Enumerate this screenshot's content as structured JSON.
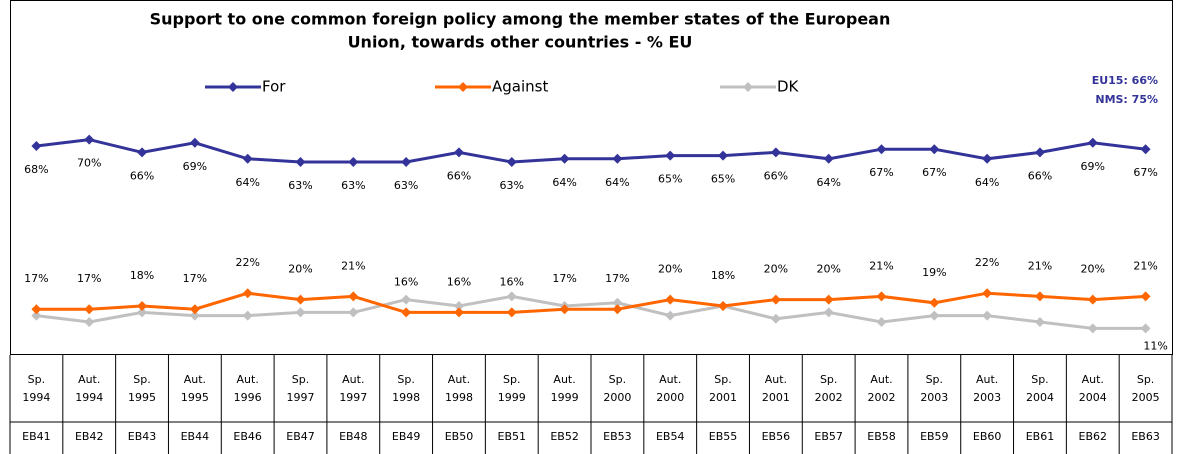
{
  "chart_data": {
    "type": "line",
    "title": [
      "Support to one common foreign policy among the member states of the European",
      "Union, towards other countries - % EU"
    ],
    "annotations": [
      "EU15: 66%",
      "NMS: 75%"
    ],
    "seasons": [
      "Sp.",
      "Aut.",
      "Sp.",
      "Aut.",
      "Aut.",
      "Sp.",
      "Aut.",
      "Sp.",
      "Aut.",
      "Sp.",
      "Aut.",
      "Sp.",
      "Aut.",
      "Sp.",
      "Aut.",
      "Sp.",
      "Aut.",
      "Sp.",
      "Aut.",
      "Sp.",
      "Aut.",
      "Sp."
    ],
    "years": [
      "1994",
      "1994",
      "1995",
      "1995",
      "1996",
      "1997",
      "1997",
      "1998",
      "1998",
      "1999",
      "1999",
      "2000",
      "2000",
      "2001",
      "2001",
      "2002",
      "2002",
      "2003",
      "2003",
      "2004",
      "2004",
      "2005"
    ],
    "waves": [
      "EB41",
      "EB42",
      "EB43",
      "EB44",
      "EB46",
      "EB47",
      "EB48",
      "EB49",
      "EB50",
      "EB51",
      "EB52",
      "EB53",
      "EB54",
      "EB55",
      "EB56",
      "EB57",
      "EB58",
      "EB59",
      "EB60",
      "EB61",
      "EB62",
      "EB63"
    ],
    "series": [
      {
        "name": "For",
        "color": "#333399",
        "values": [
          68,
          70,
          66,
          69,
          64,
          63,
          63,
          63,
          66,
          63,
          64,
          64,
          65,
          65,
          66,
          64,
          67,
          67,
          64,
          66,
          69,
          67
        ],
        "value_labels": [
          "68%",
          "70%",
          "66%",
          "69%",
          "64%",
          "63%",
          "63%",
          "63%",
          "66%",
          "63%",
          "64%",
          "64%",
          "65%",
          "65%",
          "66%",
          "64%",
          "67%",
          "67%",
          "64%",
          "66%",
          "69%",
          "67%"
        ]
      },
      {
        "name": "Against",
        "color": "#ff6600",
        "values": [
          17,
          17,
          18,
          17,
          22,
          20,
          21,
          16,
          16,
          16,
          17,
          17,
          20,
          18,
          20,
          20,
          21,
          19,
          22,
          21,
          20,
          21
        ],
        "value_labels": [
          "17%",
          "17%",
          "18%",
          "17%",
          "22%",
          "20%",
          "21%",
          "16%",
          "16%",
          "16%",
          "17%",
          "17%",
          "20%",
          "18%",
          "20%",
          "20%",
          "21%",
          "19%",
          "22%",
          "21%",
          "20%",
          "21%"
        ]
      },
      {
        "name": "DK",
        "color": "#c0c0c0",
        "values": [
          15,
          13,
          16,
          15,
          15,
          16,
          16,
          20,
          18,
          21,
          18,
          19,
          15,
          18,
          14,
          16,
          13,
          15,
          15,
          13,
          11,
          11
        ],
        "value_labels": [
          null,
          null,
          null,
          null,
          null,
          null,
          null,
          null,
          null,
          null,
          null,
          null,
          null,
          null,
          null,
          null,
          null,
          null,
          null,
          null,
          null,
          "11%"
        ]
      }
    ]
  }
}
